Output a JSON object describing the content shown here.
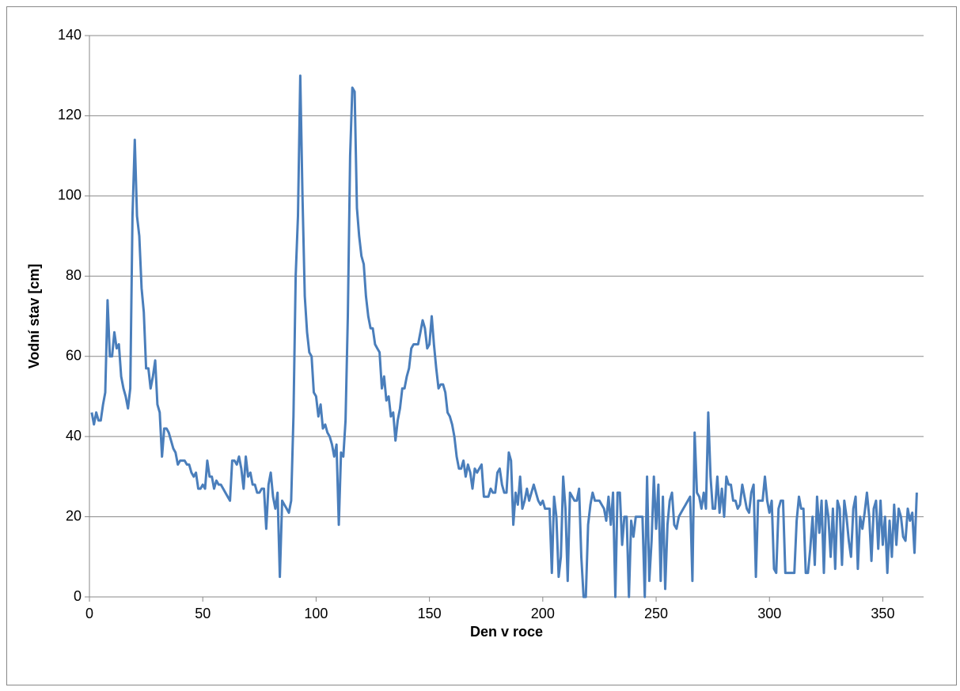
{
  "chart_data": {
    "type": "line",
    "x_label": "Den v roce",
    "y_label": "Vodní stav [cm]",
    "xlim": [
      0,
      368
    ],
    "xticks": [
      0,
      50,
      100,
      150,
      200,
      250,
      300,
      350
    ],
    "ylim": [
      0,
      140
    ],
    "yticks": [
      0,
      20,
      40,
      60,
      80,
      100,
      120,
      140
    ],
    "grid": true,
    "color": "#4a7ebb",
    "x": [
      1,
      2,
      3,
      4,
      5,
      6,
      7,
      8,
      9,
      10,
      11,
      12,
      13,
      14,
      15,
      16,
      17,
      18,
      19,
      20,
      21,
      22,
      23,
      24,
      25,
      26,
      27,
      28,
      29,
      30,
      31,
      32,
      33,
      34,
      35,
      36,
      37,
      38,
      39,
      40,
      41,
      42,
      43,
      44,
      45,
      46,
      47,
      48,
      49,
      50,
      51,
      52,
      53,
      54,
      55,
      56,
      57,
      58,
      59,
      60,
      61,
      62,
      63,
      64,
      65,
      66,
      67,
      68,
      69,
      70,
      71,
      72,
      73,
      74,
      75,
      76,
      77,
      78,
      79,
      80,
      81,
      82,
      83,
      84,
      85,
      86,
      87,
      88,
      89,
      90,
      91,
      92,
      93,
      94,
      95,
      96,
      97,
      98,
      99,
      100,
      101,
      102,
      103,
      104,
      105,
      106,
      107,
      108,
      109,
      110,
      111,
      112,
      113,
      114,
      115,
      116,
      117,
      118,
      119,
      120,
      121,
      122,
      123,
      124,
      125,
      126,
      127,
      128,
      129,
      130,
      131,
      132,
      133,
      134,
      135,
      136,
      137,
      138,
      139,
      140,
      141,
      142,
      143,
      144,
      145,
      146,
      147,
      148,
      149,
      150,
      151,
      152,
      153,
      154,
      155,
      156,
      157,
      158,
      159,
      160,
      161,
      162,
      163,
      164,
      165,
      166,
      167,
      168,
      169,
      170,
      171,
      172,
      173,
      174,
      175,
      176,
      177,
      178,
      179,
      180,
      181,
      182,
      183,
      184,
      185,
      186,
      187,
      188,
      189,
      190,
      191,
      192,
      193,
      194,
      195,
      196,
      197,
      198,
      199,
      200,
      201,
      202,
      203,
      204,
      205,
      206,
      207,
      208,
      209,
      210,
      211,
      212,
      213,
      214,
      215,
      216,
      217,
      218,
      219,
      220,
      221,
      222,
      223,
      224,
      225,
      226,
      227,
      228,
      229,
      230,
      231,
      232,
      233,
      234,
      235,
      236,
      237,
      238,
      239,
      240,
      241,
      242,
      243,
      244,
      245,
      246,
      247,
      248,
      249,
      250,
      251,
      252,
      253,
      254,
      255,
      256,
      257,
      258,
      259,
      260,
      261,
      262,
      263,
      264,
      265,
      266,
      267,
      268,
      269,
      270,
      271,
      272,
      273,
      274,
      275,
      276,
      277,
      278,
      279,
      280,
      281,
      282,
      283,
      284,
      285,
      286,
      287,
      288,
      289,
      290,
      291,
      292,
      293,
      294,
      295,
      296,
      297,
      298,
      299,
      300,
      301,
      302,
      303,
      304,
      305,
      306,
      307,
      308,
      309,
      310,
      311,
      312,
      313,
      314,
      315,
      316,
      317,
      318,
      319,
      320,
      321,
      322,
      323,
      324,
      325,
      326,
      327,
      328,
      329,
      330,
      331,
      332,
      333,
      334,
      335,
      336,
      337,
      338,
      339,
      340,
      341,
      342,
      343,
      344,
      345,
      346,
      347,
      348,
      349,
      350,
      351,
      352,
      353,
      354,
      355,
      356,
      357,
      358,
      359,
      360,
      361,
      362,
      363,
      364,
      365
    ],
    "values": [
      46,
      43,
      46,
      44,
      44,
      48,
      51,
      74,
      60,
      60,
      66,
      62,
      63,
      55,
      52,
      50,
      47,
      52,
      95,
      114,
      95,
      90,
      77,
      71,
      57,
      57,
      52,
      55,
      59,
      48,
      46,
      35,
      42,
      42,
      41,
      39,
      37,
      36,
      33,
      34,
      34,
      34,
      33,
      33,
      31,
      30,
      31,
      27,
      27,
      28,
      27,
      34,
      30,
      30,
      27,
      29,
      28,
      28,
      27,
      26,
      25,
      24,
      34,
      34,
      33,
      35,
      32,
      27,
      35,
      30,
      31,
      28,
      28,
      26,
      26,
      27,
      27,
      17,
      28,
      31,
      25,
      22,
      26,
      5,
      24,
      23,
      22,
      21,
      24,
      45,
      80,
      95,
      130,
      100,
      75,
      66,
      61,
      60,
      51,
      50,
      45,
      48,
      42,
      43,
      41,
      40,
      38,
      35,
      38,
      18,
      36,
      35,
      44,
      70,
      110,
      127,
      126,
      97,
      90,
      85,
      83,
      75,
      70,
      67,
      67,
      63,
      62,
      61,
      52,
      55,
      49,
      50,
      45,
      46,
      39,
      44,
      47,
      52,
      52,
      55,
      57,
      62,
      63,
      63,
      63,
      66,
      69,
      67,
      62,
      63,
      70,
      63,
      57,
      52,
      53,
      53,
      51,
      46,
      45,
      43,
      40,
      35,
      32,
      32,
      34,
      30,
      33,
      31,
      27,
      32,
      31,
      32,
      33,
      25,
      25,
      25,
      27,
      26,
      26,
      31,
      32,
      28,
      26,
      26,
      36,
      34,
      18,
      26,
      23,
      30,
      22,
      24,
      27,
      24,
      26,
      28,
      26,
      24,
      23,
      24,
      22,
      22,
      22,
      6,
      25,
      20,
      5,
      10,
      30,
      22,
      4,
      26,
      25,
      24,
      24,
      27,
      10,
      0,
      0,
      18,
      23,
      26,
      24,
      24,
      24,
      23,
      22,
      19,
      25,
      18,
      26,
      0,
      26,
      26,
      13,
      20,
      20,
      0,
      19,
      15,
      20,
      20,
      20,
      20,
      0,
      30,
      4,
      14,
      30,
      17,
      28,
      4,
      25,
      2,
      18,
      24,
      26,
      18,
      17,
      20,
      21,
      22,
      23,
      24,
      25,
      4,
      41,
      26,
      25,
      22,
      26,
      22,
      46,
      30,
      22,
      22,
      30,
      21,
      27,
      20,
      30,
      28,
      28,
      24,
      24,
      22,
      23,
      28,
      25,
      22,
      21,
      26,
      28,
      5,
      24,
      24,
      24,
      30,
      24,
      21,
      24,
      7,
      6,
      22,
      24,
      24,
      6,
      6,
      6,
      6,
      6,
      19,
      25,
      22,
      22,
      6,
      6,
      12,
      20,
      8,
      25,
      16,
      24,
      6,
      24,
      20,
      10,
      22,
      7,
      24,
      22,
      8,
      24,
      20,
      14,
      10,
      22,
      25,
      7,
      20,
      17,
      21,
      26,
      20,
      9,
      22,
      24,
      12,
      24,
      13,
      20,
      6,
      19,
      10,
      23,
      13,
      22,
      20,
      15,
      14,
      22,
      19,
      21,
      11,
      26
    ]
  }
}
